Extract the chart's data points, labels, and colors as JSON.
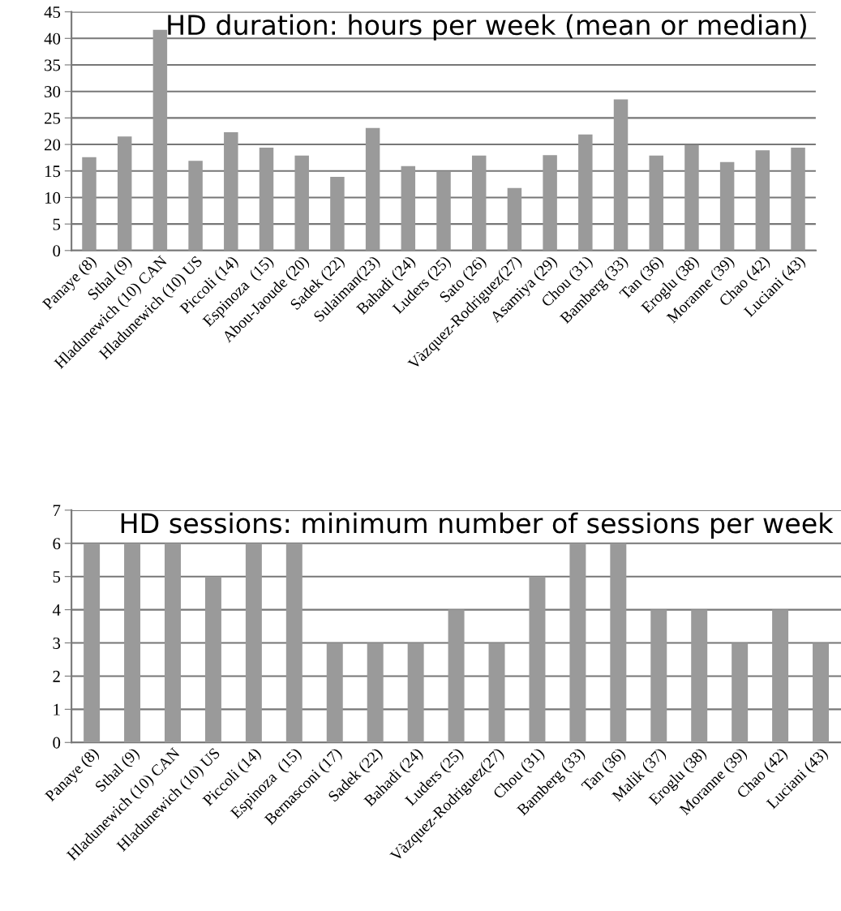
{
  "chart_data": [
    {
      "type": "bar",
      "title": "HD duration: hours per week (mean or median)",
      "categories": [
        "Panaye (8)",
        "Sthal (9)",
        "Hladunewich (10) CAN",
        "Hladunewich (10) US",
        "Piccoli (14)",
        "Espinoza  (15)",
        "Abou-Jaoude (20)",
        "Sadek (22)",
        "Sulaiman(23)",
        "Bahadi (24)",
        "Luders (25)",
        "Sato (26)",
        "Vàzquez-Rodriguez(27)",
        "Asamiya (29)",
        "Chou (31)",
        "Bamberg (33)",
        "Tan (36)",
        "Eroglu (38)",
        "Moranne (39)",
        "Chao (42)",
        "Luciani (43)"
      ],
      "values": [
        17.6,
        21.5,
        41.6,
        16.9,
        22.3,
        19.4,
        17.9,
        13.9,
        23.1,
        15.9,
        14.9,
        17.9,
        11.8,
        18,
        21.9,
        28.5,
        17.9,
        19.9,
        16.7,
        18.9,
        19.4
      ],
      "color": "#9a9a9a",
      "ylim": [
        0,
        45
      ],
      "yticks": [
        0,
        5,
        10,
        15,
        20,
        25,
        30,
        35,
        40,
        45
      ],
      "grid": "y"
    },
    {
      "type": "bar",
      "title": "HD sessions: minimum number of sessions per week",
      "categories": [
        "Panaye (8)",
        "Sthal (9)",
        "Hladunewich (10) CAN",
        "Hladunewich (10) US",
        "Piccoli (14)",
        "Espinoza  (15)",
        "Bernasconi (17)",
        "Sadek (22)",
        "Bahadi (24)",
        "Luders (25)",
        "Vàzquez-Rodriguez(27)",
        "Chou (31)",
        "Bamberg (33)",
        "Tan (36)",
        "Malik (37)",
        "Eroglu (38)",
        "Moranne (39)",
        "Chao (42)",
        "Luciani (43)"
      ],
      "values": [
        6,
        6,
        6,
        5,
        6,
        6,
        3,
        3,
        3,
        4,
        3,
        5,
        6,
        6,
        4,
        4,
        3,
        4,
        3
      ],
      "color": "#9a9a9a",
      "ylim": [
        0,
        7
      ],
      "yticks": [
        0,
        1,
        2,
        3,
        4,
        5,
        6,
        7
      ],
      "grid": "y"
    }
  ]
}
